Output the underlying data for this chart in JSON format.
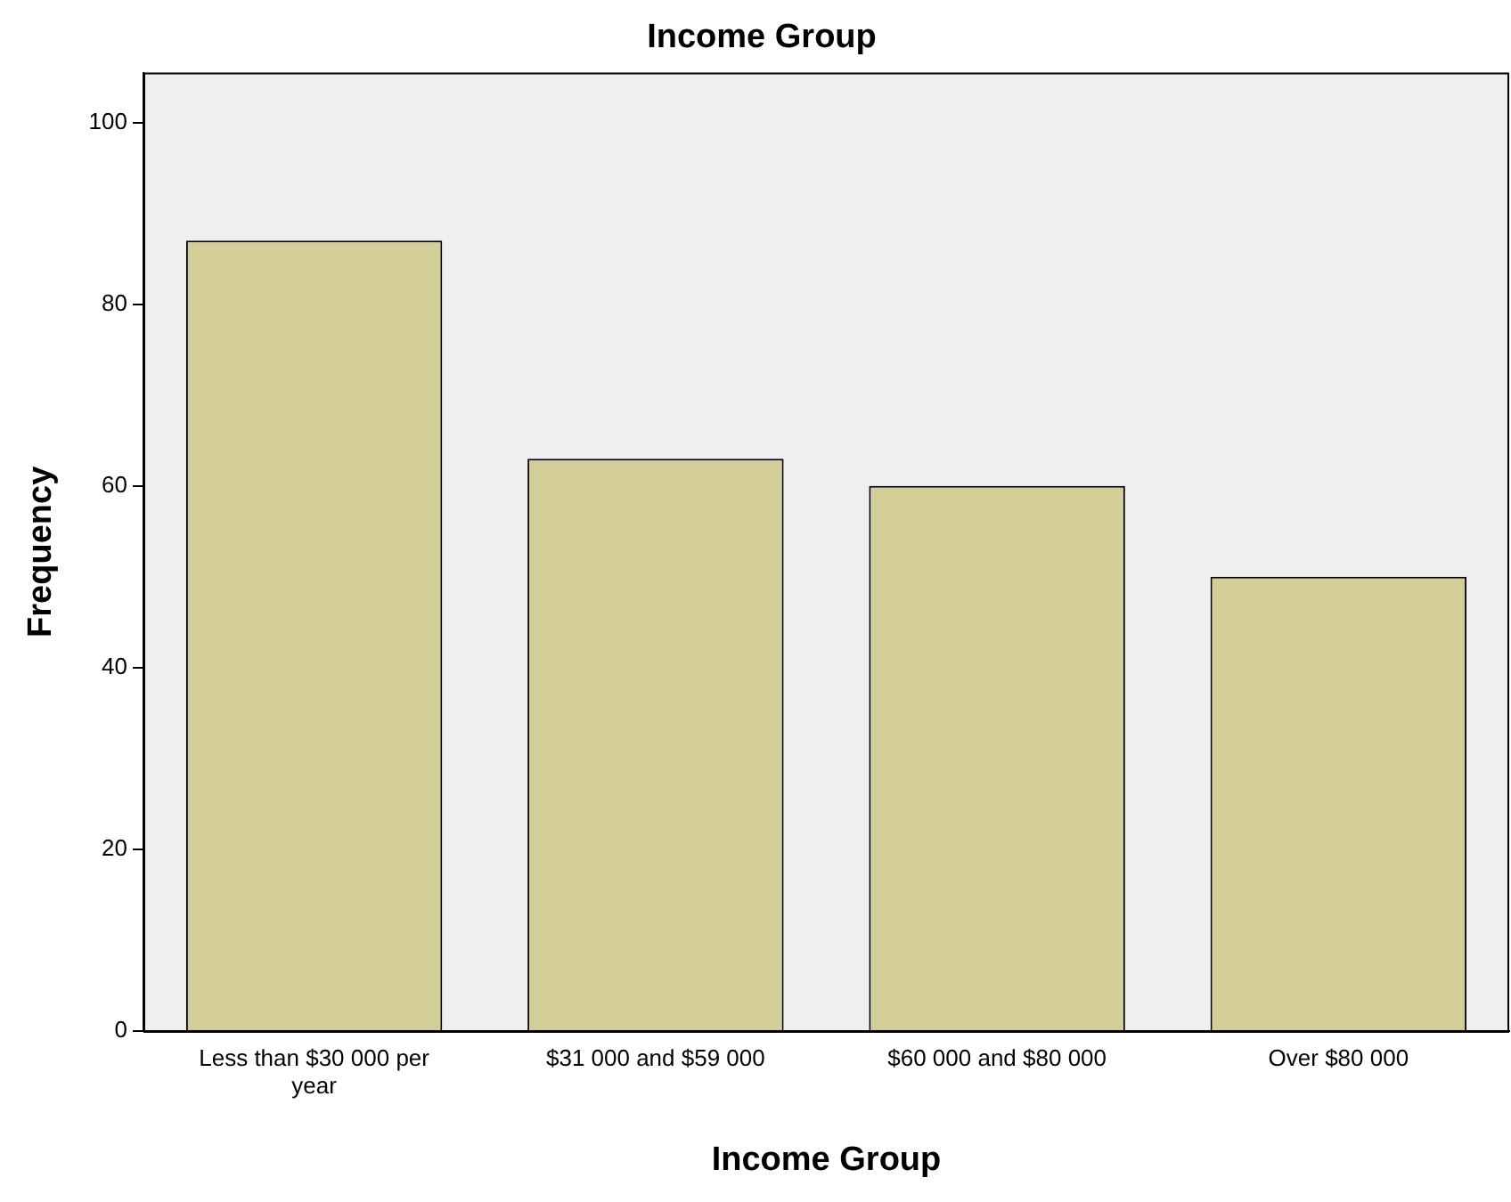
{
  "chart_data": {
    "type": "bar",
    "title": "Income Group",
    "xlabel": "Income Group",
    "ylabel": "Frequency",
    "categories": [
      "Less than $30 000 per year",
      "$31 000 and $59 000",
      "$60 000 and $80 000",
      "Over $80 000"
    ],
    "values": [
      87,
      63,
      60,
      50
    ],
    "color": "#d3cd98",
    "ylim": [
      0,
      105.5
    ],
    "yticks": [
      0,
      20,
      40,
      60,
      80,
      100
    ],
    "grid": false,
    "legend": false
  }
}
